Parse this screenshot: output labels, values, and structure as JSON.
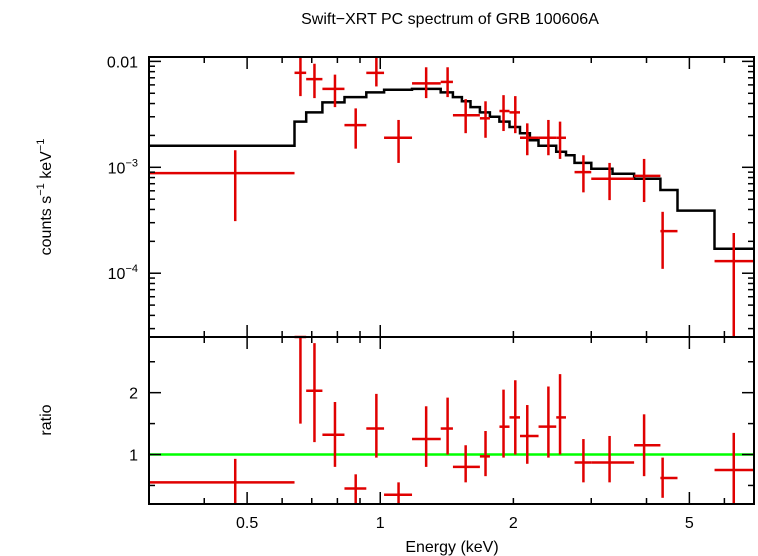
{
  "chart_data": [
    {
      "type": "scatter",
      "panel": "spectrum",
      "title": "Swift−XRT PC spectrum of GRB 100606A",
      "ylabel_parts": [
        "counts s",
        "−1",
        " keV",
        "−1"
      ],
      "xscale": "log",
      "yscale": "log",
      "xlim": [
        0.3,
        7.0
      ],
      "ylim": [
        2.5e-05,
        0.011
      ],
      "y_ticks": [
        {
          "value": 0.01,
          "label": "0.01",
          "sup": ""
        },
        {
          "value": 0.001,
          "label": "10",
          "sup": "−3"
        },
        {
          "value": 0.0001,
          "label": "10",
          "sup": "−4"
        }
      ],
      "model_color": "#000000",
      "data_color": "#e00000",
      "model_step": {
        "edges": [
          0.3,
          0.64,
          0.68,
          0.74,
          0.83,
          0.93,
          1.02,
          1.18,
          1.37,
          1.46,
          1.53,
          1.6,
          1.68,
          1.77,
          1.86,
          1.96,
          2.07,
          2.18,
          2.28,
          2.5,
          2.63,
          2.75,
          3.0,
          3.35,
          3.75,
          4.3,
          4.7,
          5.7,
          7.0
        ],
        "values": [
          0.0016,
          0.0027,
          0.0033,
          0.0041,
          0.0046,
          0.0051,
          0.0054,
          0.0055,
          0.0051,
          0.0046,
          0.0042,
          0.0037,
          0.0033,
          0.003,
          0.0027,
          0.0024,
          0.0021,
          0.0018,
          0.0016,
          0.0014,
          0.0013,
          0.0011,
          0.00097,
          0.00087,
          0.00078,
          0.00061,
          0.00039,
          0.00017
        ]
      },
      "points": [
        {
          "x": 0.47,
          "xlo": 0.3,
          "xhi": 0.64,
          "y": 0.00088,
          "ylo": 0.00031,
          "yhi": 0.00145
        },
        {
          "x": 0.66,
          "xlo": 0.64,
          "xhi": 0.68,
          "y": 0.0078,
          "ylo": 0.0047,
          "yhi": 0.0115
        },
        {
          "x": 0.71,
          "xlo": 0.68,
          "xhi": 0.74,
          "y": 0.0068,
          "ylo": 0.0045,
          "yhi": 0.0095
        },
        {
          "x": 0.79,
          "xlo": 0.74,
          "xhi": 0.83,
          "y": 0.0055,
          "ylo": 0.0037,
          "yhi": 0.0075
        },
        {
          "x": 0.88,
          "xlo": 0.83,
          "xhi": 0.93,
          "y": 0.0025,
          "ylo": 0.0015,
          "yhi": 0.0036
        },
        {
          "x": 0.98,
          "xlo": 0.93,
          "xhi": 1.02,
          "y": 0.0078,
          "ylo": 0.0058,
          "yhi": 0.011
        },
        {
          "x": 1.1,
          "xlo": 1.02,
          "xhi": 1.18,
          "y": 0.0019,
          "ylo": 0.0011,
          "yhi": 0.0028
        },
        {
          "x": 1.27,
          "xlo": 1.18,
          "xhi": 1.37,
          "y": 0.0062,
          "ylo": 0.0045,
          "yhi": 0.0088
        },
        {
          "x": 1.42,
          "xlo": 1.37,
          "xhi": 1.46,
          "y": 0.0064,
          "ylo": 0.0046,
          "yhi": 0.0088
        },
        {
          "x": 1.56,
          "xlo": 1.46,
          "xhi": 1.68,
          "y": 0.0031,
          "ylo": 0.0021,
          "yhi": 0.0044
        },
        {
          "x": 1.73,
          "xlo": 1.68,
          "xhi": 1.77,
          "y": 0.0029,
          "ylo": 0.0019,
          "yhi": 0.0042
        },
        {
          "x": 1.9,
          "xlo": 1.86,
          "xhi": 1.96,
          "y": 0.0034,
          "ylo": 0.0022,
          "yhi": 0.0048
        },
        {
          "x": 2.02,
          "xlo": 1.96,
          "xhi": 2.07,
          "y": 0.0033,
          "ylo": 0.0021,
          "yhi": 0.0047
        },
        {
          "x": 2.15,
          "xlo": 2.07,
          "xhi": 2.28,
          "y": 0.0019,
          "ylo": 0.0013,
          "yhi": 0.0026
        },
        {
          "x": 2.4,
          "xlo": 2.28,
          "xhi": 2.5,
          "y": 0.0019,
          "ylo": 0.0013,
          "yhi": 0.0028
        },
        {
          "x": 2.55,
          "xlo": 2.5,
          "xhi": 2.63,
          "y": 0.0019,
          "ylo": 0.0012,
          "yhi": 0.0027
        },
        {
          "x": 2.88,
          "xlo": 2.75,
          "xhi": 3.0,
          "y": 0.0009,
          "ylo": 0.00058,
          "yhi": 0.0013
        },
        {
          "x": 3.3,
          "xlo": 3.0,
          "xhi": 3.75,
          "y": 0.00078,
          "ylo": 0.00049,
          "yhi": 0.0011
        },
        {
          "x": 3.95,
          "xlo": 3.75,
          "xhi": 4.3,
          "y": 0.00083,
          "ylo": 0.00047,
          "yhi": 0.0012
        },
        {
          "x": 4.35,
          "xlo": 4.3,
          "xhi": 4.7,
          "y": 0.00025,
          "ylo": 0.00011,
          "yhi": 0.00038
        },
        {
          "x": 6.3,
          "xlo": 5.7,
          "xhi": 7.0,
          "y": 0.00013,
          "ylo": 2.5e-05,
          "yhi": 0.00024
        }
      ]
    },
    {
      "type": "scatter",
      "panel": "ratio",
      "xlabel": "Energy (keV)",
      "ylabel": "ratio",
      "xscale": "log",
      "xlim": [
        0.3,
        7.0
      ],
      "ylim": [
        0.2,
        2.9
      ],
      "x_ticks": [
        {
          "value": 0.5,
          "label": "0.5"
        },
        {
          "value": 1,
          "label": "1"
        },
        {
          "value": 2,
          "label": "2"
        },
        {
          "value": 5,
          "label": "5"
        }
      ],
      "y_ticks": [
        {
          "value": 1,
          "label": "1"
        },
        {
          "value": 2,
          "label": "2"
        }
      ],
      "reference_line": {
        "y": 1,
        "color": "#00ff00"
      },
      "data_color": "#e00000",
      "points": [
        {
          "x": 0.47,
          "xlo": 0.3,
          "xhi": 0.64,
          "y": 0.55,
          "ylo": 0.2,
          "yhi": 0.93
        },
        {
          "x": 0.66,
          "xlo": 0.64,
          "xhi": 0.68,
          "y": 2.9,
          "ylo": 1.5,
          "yhi": 2.9
        },
        {
          "x": 0.71,
          "xlo": 0.68,
          "xhi": 0.74,
          "y": 2.03,
          "ylo": 1.2,
          "yhi": 2.8
        },
        {
          "x": 0.79,
          "xlo": 0.74,
          "xhi": 0.83,
          "y": 1.32,
          "ylo": 0.8,
          "yhi": 1.85
        },
        {
          "x": 0.88,
          "xlo": 0.83,
          "xhi": 0.93,
          "y": 0.45,
          "ylo": 0.2,
          "yhi": 0.68
        },
        {
          "x": 0.98,
          "xlo": 0.93,
          "xhi": 1.02,
          "y": 1.42,
          "ylo": 0.95,
          "yhi": 1.98
        },
        {
          "x": 1.1,
          "xlo": 1.02,
          "xhi": 1.18,
          "y": 0.35,
          "ylo": 0.2,
          "yhi": 0.55
        },
        {
          "x": 1.27,
          "xlo": 1.18,
          "xhi": 1.37,
          "y": 1.25,
          "ylo": 0.8,
          "yhi": 1.78
        },
        {
          "x": 1.42,
          "xlo": 1.37,
          "xhi": 1.46,
          "y": 1.42,
          "ylo": 1.0,
          "yhi": 1.92
        },
        {
          "x": 1.56,
          "xlo": 1.46,
          "xhi": 1.68,
          "y": 0.8,
          "ylo": 0.55,
          "yhi": 1.15
        },
        {
          "x": 1.73,
          "xlo": 1.68,
          "xhi": 1.77,
          "y": 0.97,
          "ylo": 0.65,
          "yhi": 1.38
        },
        {
          "x": 1.9,
          "xlo": 1.86,
          "xhi": 1.96,
          "y": 1.45,
          "ylo": 0.95,
          "yhi": 2.05
        },
        {
          "x": 2.02,
          "xlo": 1.96,
          "xhi": 2.07,
          "y": 1.6,
          "ylo": 1.0,
          "yhi": 2.2
        },
        {
          "x": 2.15,
          "xlo": 2.07,
          "xhi": 2.28,
          "y": 1.3,
          "ylo": 0.85,
          "yhi": 1.8
        },
        {
          "x": 2.4,
          "xlo": 2.28,
          "xhi": 2.5,
          "y": 1.45,
          "ylo": 0.95,
          "yhi": 2.1
        },
        {
          "x": 2.55,
          "xlo": 2.5,
          "xhi": 2.63,
          "y": 1.6,
          "ylo": 1.0,
          "yhi": 2.3
        },
        {
          "x": 2.88,
          "xlo": 2.75,
          "xhi": 3.0,
          "y": 0.87,
          "ylo": 0.55,
          "yhi": 1.25
        },
        {
          "x": 3.3,
          "xlo": 3.0,
          "xhi": 3.75,
          "y": 0.87,
          "ylo": 0.55,
          "yhi": 1.3
        },
        {
          "x": 3.95,
          "xlo": 3.75,
          "xhi": 4.3,
          "y": 1.15,
          "ylo": 0.65,
          "yhi": 1.65
        },
        {
          "x": 4.35,
          "xlo": 4.3,
          "xhi": 4.7,
          "y": 0.62,
          "ylo": 0.3,
          "yhi": 0.95
        },
        {
          "x": 6.3,
          "xlo": 5.7,
          "xhi": 7.0,
          "y": 0.75,
          "ylo": 0.2,
          "yhi": 1.35
        }
      ]
    }
  ]
}
